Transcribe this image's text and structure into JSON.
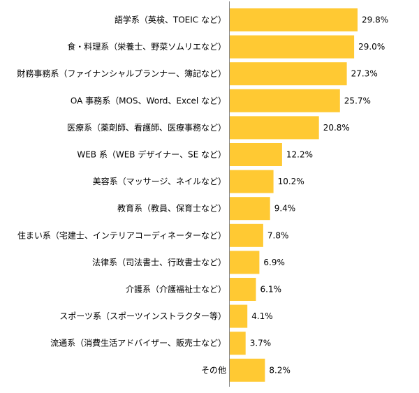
{
  "chart_data": {
    "type": "bar",
    "orientation": "horizontal",
    "categories": [
      "語学系（英検、TOEIC など）",
      "食・料理系（栄養士、野菜ソムリエなど）",
      "財務事務系（ファイナンシャルプランナー、簿記など）",
      "OA 事務系（MOS、Word、Excel など）",
      "医療系（薬剤師、看護師、医療事務など）",
      "WEB 系（WEB デザイナー、SE など）",
      "美容系（マッサージ、ネイルなど）",
      "教育系（教員、保育士など）",
      "住まい系（宅建士、インテリアコーディネーターなど）",
      "法律系（司法書士、行政書士など）",
      "介護系（介護福祉士など）",
      "スポーツ系（スポーツインストラクター等）",
      "流通系（消費生活アドバイザー、販売士など）",
      "その他"
    ],
    "values": [
      29.8,
      29.0,
      27.3,
      25.7,
      20.8,
      12.2,
      10.2,
      9.4,
      7.8,
      6.9,
      6.1,
      4.1,
      3.7,
      8.2
    ],
    "value_labels": [
      "29.8%",
      "29.0%",
      "27.3%",
      "25.7%",
      "20.8%",
      "12.2%",
      "10.2%",
      "9.4%",
      "7.8%",
      "6.9%",
      "6.1%",
      "4.1%",
      "3.7%",
      "8.2%"
    ],
    "xlim": [
      0,
      30
    ],
    "bar_color": "#ffc933",
    "axis_color": "#888888",
    "grid": false,
    "legend": "none",
    "title": "",
    "xlabel": "",
    "ylabel": ""
  }
}
